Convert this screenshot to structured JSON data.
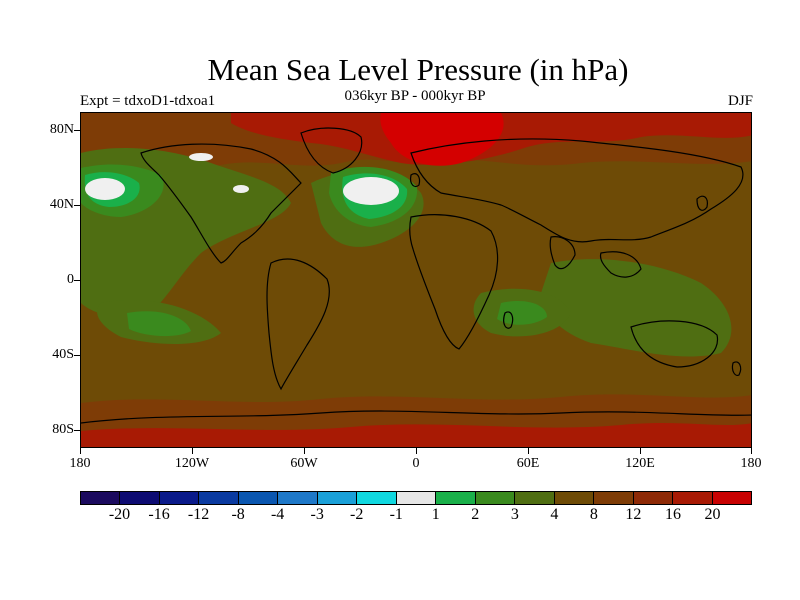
{
  "title": "Mean Sea Level Pressure (in hPa)",
  "subtitle": "036kyr BP - 000kyr BP",
  "experiment_label": "Expt = tdxoD1-tdxoa1",
  "season_label": "DJF",
  "map": {
    "projection": "cylindrical equidistant",
    "lat_ticks": [
      "80N",
      "40N",
      "0",
      "40S",
      "80S"
    ],
    "lon_ticks": [
      "180",
      "120W",
      "60W",
      "0",
      "60E",
      "120E",
      "180"
    ],
    "background_level_color": "#6e4b06"
  },
  "colorbar": {
    "colors": [
      "#1b0a5e",
      "#0d0b72",
      "#0a1a8a",
      "#0a3aa0",
      "#0a56b0",
      "#1e78c8",
      "#1aa0d8",
      "#10d8e0",
      "#e6e6e6",
      "#1ab04a",
      "#3a8a1e",
      "#4f6e12",
      "#6e4b06",
      "#7e3c06",
      "#8e2a06",
      "#a81a04",
      "#c80202"
    ],
    "labels": [
      "-20",
      "-16",
      "-12",
      "-8",
      "-4",
      "-3",
      "-2",
      "-1",
      "1",
      "2",
      "3",
      "4",
      "8",
      "12",
      "16",
      "20"
    ]
  },
  "palette": {
    "level_4": "#4f6e12",
    "level_3": "#3a8a1e",
    "level_2": "#1ab04a",
    "level_1_white": "#f0f0f0",
    "level_8": "#6e4b06",
    "level_12": "#7e3c06",
    "level_16": "#a81a04",
    "level_20": "#d40000"
  }
}
